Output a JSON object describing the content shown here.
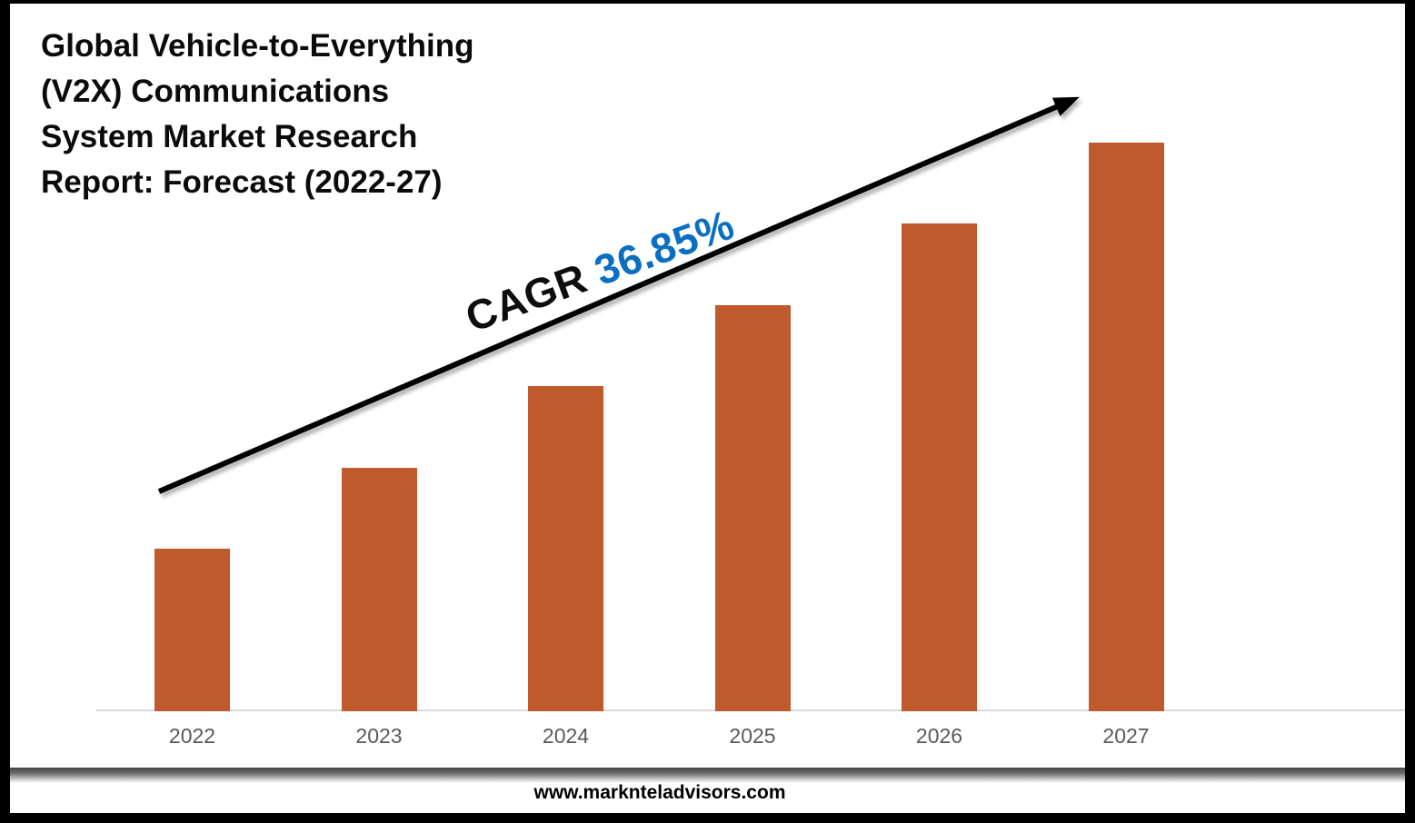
{
  "title": {
    "text": "Global Vehicle-to-Everything\n(V2X) Communications\nSystem Market Research\nReport: Forecast (2022-27)"
  },
  "cagr": {
    "label": "CAGR ",
    "value": "36.85%",
    "label_color": "#0d0d0d",
    "value_color": "#0b6fc1"
  },
  "chart_data": {
    "type": "bar",
    "title": "Global Vehicle-to-Everything (V2X) Communications System Market Research Report: Forecast (2022-27)",
    "categories": [
      "2022",
      "2023",
      "2024",
      "2025",
      "2026",
      "2027"
    ],
    "values": [
      2,
      3,
      4,
      5,
      6,
      7
    ],
    "units": "relative (no value axis shown; bar heights proportional to 2:3:4:5:6:7)",
    "xlabel": "",
    "ylabel": "",
    "ylim": [
      0,
      7.8
    ],
    "grid": false,
    "value_axis_visible": false,
    "legend": "none",
    "bar_color": "#be5a2b",
    "axis_line_color": "#d9d9d9",
    "tick_label_color": "#595959",
    "annotation": {
      "label": "CAGR",
      "value": "36.85%",
      "arrow_color": "#000000"
    }
  },
  "footer": {
    "url": "www.marknteladvisors.com"
  },
  "colors": {
    "frame": "#000000",
    "background": "#ffffff"
  }
}
